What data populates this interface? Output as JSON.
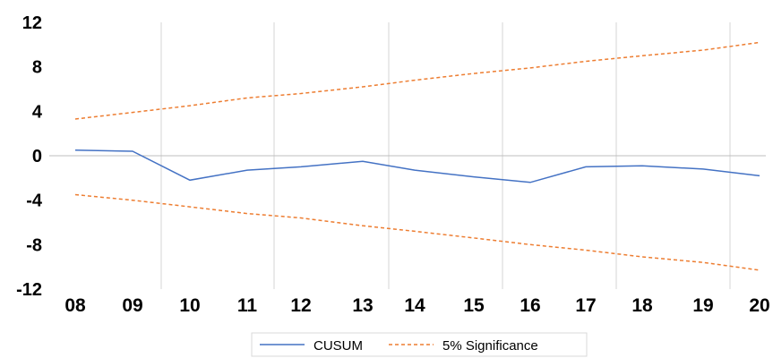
{
  "chart_data": {
    "type": "line",
    "title": "",
    "xlabel": "",
    "ylabel": "",
    "x": [
      "08",
      "09",
      "10",
      "11",
      "12",
      "13",
      "14",
      "15",
      "16",
      "17",
      "18",
      "19",
      "20"
    ],
    "y_ticks": [
      "12",
      "8",
      "4",
      "0",
      "-4",
      "-8",
      "-12"
    ],
    "ylim": [
      -12,
      12
    ],
    "grid": "vertical",
    "legend_position": "bottom",
    "series": [
      {
        "name": "CUSUM",
        "style": "solid",
        "color": "#4472c4",
        "values": [
          0.5,
          0.4,
          -2.2,
          -1.3,
          -1.0,
          -0.5,
          -1.3,
          -1.9,
          -2.4,
          -1.0,
          -0.9,
          -1.2,
          -1.8
        ]
      },
      {
        "name": "5% Significance",
        "style": "dashed",
        "color": "#ed7d31",
        "values": [
          3.3,
          3.9,
          4.5,
          5.2,
          5.6,
          6.2,
          6.8,
          7.4,
          7.9,
          8.5,
          9.0,
          9.5,
          10.2
        ]
      },
      {
        "style": "dashed",
        "color": "#ed7d31",
        "values": [
          -3.5,
          -4.0,
          -4.6,
          -5.2,
          -5.6,
          -6.3,
          -6.8,
          -7.4,
          -8.0,
          -8.5,
          -9.1,
          -9.6,
          -10.3
        ]
      }
    ]
  }
}
